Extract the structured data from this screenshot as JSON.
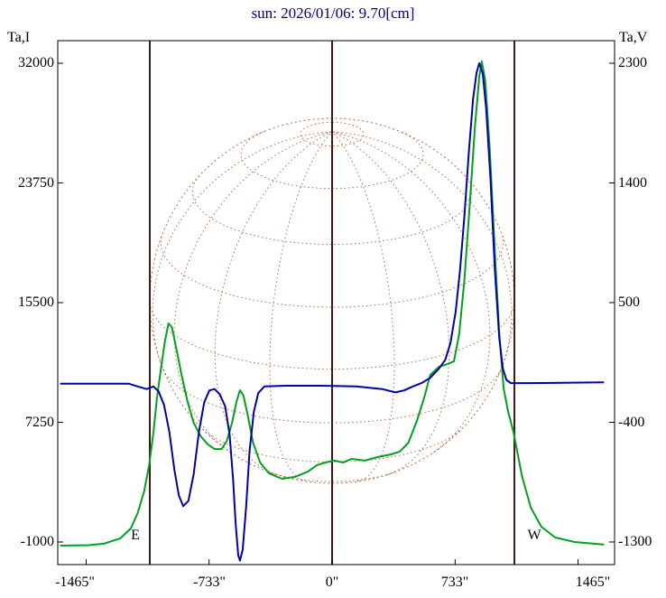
{
  "title": {
    "text": "sun: 2026/01/06: 9.70[cm]",
    "color": "#000080"
  },
  "axes": {
    "left": {
      "label": "Ta,I",
      "ticks": [
        "32000",
        "23750",
        "15500",
        "7250",
        "-1000"
      ]
    },
    "right": {
      "label": "Ta,V",
      "ticks": [
        "2300",
        "1400",
        "500",
        "-400",
        "-1300"
      ]
    },
    "x": {
      "ticks": [
        "-1465\"",
        "-733\"",
        "0\"",
        "733\"",
        "1465\""
      ]
    }
  },
  "annotations": {
    "east_label": "E",
    "west_label": "W"
  },
  "chart_data": {
    "type": "line",
    "title": "sun: 2026/01/06: 9.70[cm]",
    "x_unit": "arcsec",
    "x_ticks_arcsec": [
      -1465,
      -733,
      0,
      733,
      1465
    ],
    "x_range": [
      -1635,
      1685
    ],
    "left_axis": {
      "label": "Ta,I",
      "ticks": [
        32000,
        23750,
        15500,
        7250,
        -1000
      ]
    },
    "right_axis": {
      "label": "Ta,V",
      "ticks": [
        2300,
        1400,
        500,
        -400,
        -1300
      ]
    },
    "vlines_arcsec": [
      -1086,
      0,
      1086
    ],
    "sun_disk": {
      "center_arcsec": 0,
      "radius_arcsec": 1086,
      "grid_step_deg": 20,
      "tilt_deg": 22
    },
    "colors": {
      "green_series": "#00a020",
      "blue_series": "#0000a8",
      "sun_grid": "#c06a40",
      "limb_lines": "#401818",
      "frame": "#000000",
      "title": "#000080"
    },
    "series": [
      {
        "name": "Ta,I",
        "axis": "left",
        "color": "#00a020",
        "points": [
          [
            -1620,
            -1250
          ],
          [
            -1450,
            -1220
          ],
          [
            -1360,
            -1120
          ],
          [
            -1262,
            -750
          ],
          [
            -1199,
            -60
          ],
          [
            -1158,
            1000
          ],
          [
            -1121,
            2430
          ],
          [
            -1090,
            4300
          ],
          [
            -1064,
            6600
          ],
          [
            -1043,
            8960
          ],
          [
            -1017,
            11140
          ],
          [
            -996,
            12820
          ],
          [
            -975,
            14070
          ],
          [
            -955,
            13820
          ],
          [
            -929,
            12390
          ],
          [
            -897,
            10520
          ],
          [
            -861,
            8650
          ],
          [
            -825,
            7220
          ],
          [
            -783,
            6290
          ],
          [
            -741,
            5730
          ],
          [
            -700,
            5410
          ],
          [
            -658,
            5410
          ],
          [
            -627,
            5980
          ],
          [
            -596,
            7220
          ],
          [
            -570,
            8650
          ],
          [
            -549,
            9460
          ],
          [
            -528,
            9090
          ],
          [
            -502,
            7720
          ],
          [
            -471,
            5850
          ],
          [
            -429,
            4480
          ],
          [
            -377,
            3740
          ],
          [
            -299,
            3360
          ],
          [
            -221,
            3490
          ],
          [
            -143,
            3860
          ],
          [
            -91,
            4300
          ],
          [
            -39,
            4480
          ],
          [
            13,
            4610
          ],
          [
            65,
            4480
          ],
          [
            117,
            4730
          ],
          [
            195,
            4610
          ],
          [
            273,
            4860
          ],
          [
            351,
            5040
          ],
          [
            403,
            5230
          ],
          [
            455,
            5850
          ],
          [
            507,
            7410
          ],
          [
            549,
            8960
          ],
          [
            585,
            10520
          ],
          [
            637,
            11080
          ],
          [
            689,
            11270
          ],
          [
            726,
            11460
          ],
          [
            757,
            13320
          ],
          [
            788,
            17060
          ],
          [
            819,
            22040
          ],
          [
            851,
            27640
          ],
          [
            877,
            31070
          ],
          [
            892,
            32130
          ],
          [
            913,
            30760
          ],
          [
            939,
            26090
          ],
          [
            970,
            18930
          ],
          [
            996,
            13320
          ],
          [
            1022,
            9590
          ],
          [
            1048,
            8030
          ],
          [
            1080,
            6600
          ],
          [
            1132,
            3490
          ],
          [
            1184,
            1370
          ],
          [
            1246,
            60
          ],
          [
            1329,
            -690
          ],
          [
            1444,
            -1000
          ],
          [
            1620,
            -1180
          ]
        ]
      },
      {
        "name": "Ta,V",
        "axis": "right",
        "color": "#0000a8",
        "points": [
          [
            -1620,
            -110
          ],
          [
            -1210,
            -110
          ],
          [
            -1158,
            -130
          ],
          [
            -1105,
            -150
          ],
          [
            -1064,
            -130
          ],
          [
            -1033,
            -170
          ],
          [
            -1001,
            -270
          ],
          [
            -970,
            -470
          ],
          [
            -939,
            -760
          ],
          [
            -913,
            -950
          ],
          [
            -887,
            -1030
          ],
          [
            -856,
            -990
          ],
          [
            -825,
            -790
          ],
          [
            -793,
            -470
          ],
          [
            -762,
            -250
          ],
          [
            -731,
            -160
          ],
          [
            -700,
            -150
          ],
          [
            -669,
            -190
          ],
          [
            -637,
            -280
          ],
          [
            -611,
            -490
          ],
          [
            -590,
            -830
          ],
          [
            -575,
            -1160
          ],
          [
            -559,
            -1400
          ],
          [
            -549,
            -1440
          ],
          [
            -533,
            -1360
          ],
          [
            -512,
            -1030
          ],
          [
            -492,
            -620
          ],
          [
            -466,
            -320
          ],
          [
            -440,
            -180
          ],
          [
            -403,
            -130
          ],
          [
            -273,
            -125
          ],
          [
            -65,
            -125
          ],
          [
            143,
            -130
          ],
          [
            299,
            -150
          ],
          [
            377,
            -175
          ],
          [
            429,
            -160
          ],
          [
            481,
            -130
          ],
          [
            533,
            -105
          ],
          [
            585,
            -65
          ],
          [
            637,
            5
          ],
          [
            674,
            70
          ],
          [
            705,
            195
          ],
          [
            736,
            430
          ],
          [
            762,
            740
          ],
          [
            788,
            1150
          ],
          [
            814,
            1620
          ],
          [
            840,
            2030
          ],
          [
            861,
            2230
          ],
          [
            877,
            2300
          ],
          [
            898,
            2220
          ],
          [
            918,
            1960
          ],
          [
            944,
            1420
          ],
          [
            970,
            740
          ],
          [
            996,
            230
          ],
          [
            1017,
            5
          ],
          [
            1038,
            -80
          ],
          [
            1064,
            -105
          ],
          [
            1184,
            -105
          ],
          [
            1620,
            -100
          ]
        ]
      }
    ]
  }
}
